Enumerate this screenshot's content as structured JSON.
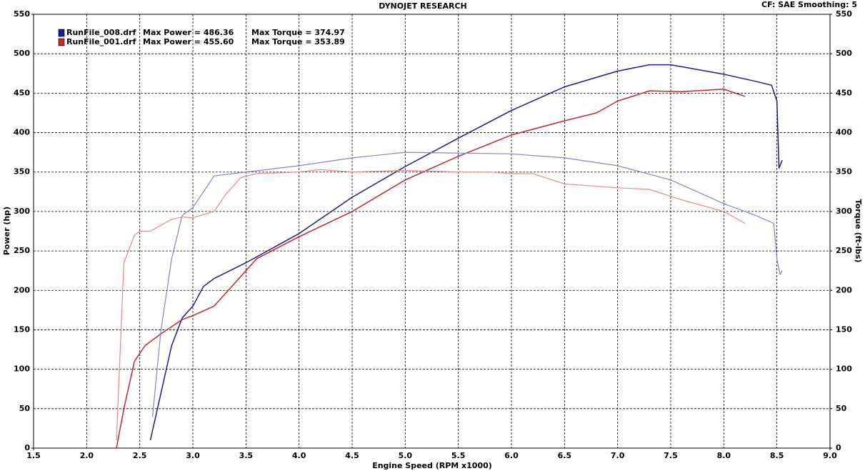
{
  "chart_data": {
    "type": "line",
    "title": "DYNOJET RESEARCH",
    "subtitle": "CF: SAE  Smoothing: 5",
    "x_label": "Engine Speed (RPM x1000)",
    "y_label": "Power (hp)",
    "y2_label": "Torque (ft-lbs)",
    "grid": true,
    "xlim": [
      1.5,
      9.0
    ],
    "xticks": [
      1.5,
      {
        "value": 2,
        "label": "2.0"
      },
      2.5,
      {
        "value": 3,
        "label": "3.0"
      },
      3.5,
      {
        "value": 4,
        "label": "4.0"
      },
      4.5,
      {
        "value": 5,
        "label": "5.0"
      },
      5.5,
      {
        "value": 6,
        "label": "6.0"
      },
      6.5,
      {
        "value": 7,
        "label": "7.0"
      },
      7.5,
      {
        "value": 8,
        "label": "8.0"
      },
      8.5,
      {
        "value": 9,
        "label": "9.0"
      }
    ],
    "ylim": [
      0,
      550
    ],
    "yticks": [
      0,
      50,
      100,
      150,
      200,
      250,
      300,
      350,
      400,
      450,
      500,
      550
    ],
    "y2lim": [
      0,
      550
    ],
    "y2ticks": [
      0,
      50,
      100,
      150,
      200,
      250,
      300,
      350,
      400,
      450,
      500,
      550
    ],
    "legend_annotations": [
      [
        "Max Power = 486.36",
        "Max Torque = 374.97"
      ],
      [
        "Max Power = 455.60",
        "Max Torque = 353.89"
      ]
    ],
    "series": [
      {
        "name": "RunFile_008.drf",
        "color": "#1c1c8a",
        "x": [
          2.6,
          2.7,
          2.8,
          2.9,
          3.0,
          3.1,
          3.2,
          3.5,
          4.0,
          4.5,
          5.0,
          5.5,
          6.0,
          6.5,
          7.0,
          7.3,
          7.5,
          8.0,
          8.3,
          8.45,
          8.5,
          8.52,
          8.55
        ],
        "values": [
          10,
          70,
          130,
          165,
          180,
          205,
          215,
          235,
          272,
          318,
          357,
          393,
          428,
          458,
          478,
          486,
          486,
          474,
          465,
          460,
          440,
          355,
          365
        ]
      },
      {
        "name": "RunFile_001.drf",
        "color": "#c0282a",
        "x": [
          2.28,
          2.35,
          2.45,
          2.55,
          2.7,
          2.9,
          3.0,
          3.2,
          3.4,
          3.6,
          4.0,
          4.5,
          5.0,
          5.5,
          6.0,
          6.5,
          6.8,
          7.0,
          7.3,
          7.6,
          8.0,
          8.2
        ],
        "values": [
          0,
          50,
          110,
          130,
          145,
          163,
          168,
          180,
          210,
          240,
          268,
          300,
          340,
          370,
          397,
          415,
          425,
          440,
          453,
          452,
          455,
          446
        ]
      },
      {
        "axis": "y2",
        "color": "#8585c4",
        "x": [
          2.62,
          2.7,
          2.8,
          2.9,
          3.0,
          3.2,
          3.5,
          4.0,
          4.5,
          5.0,
          5.5,
          6.0,
          6.5,
          7.0,
          7.5,
          8.0,
          8.3,
          8.47,
          8.5,
          8.53,
          8.55
        ],
        "values": [
          40,
          150,
          240,
          295,
          305,
          345,
          350,
          358,
          368,
          375,
          374,
          373,
          368,
          358,
          340,
          310,
          295,
          285,
          240,
          220,
          225
        ]
      },
      {
        "axis": "y2",
        "color": "#e48a8a",
        "x": [
          2.28,
          2.35,
          2.45,
          2.5,
          2.6,
          2.8,
          2.9,
          3.0,
          3.2,
          3.3,
          3.45,
          3.6,
          4.0,
          4.2,
          4.5,
          5.0,
          5.5,
          5.8,
          6.0,
          6.2,
          6.5,
          7.0,
          7.3,
          7.6,
          8.0,
          8.2
        ],
        "values": [
          10,
          235,
          270,
          275,
          275,
          290,
          293,
          292,
          300,
          320,
          343,
          348,
          350,
          353,
          350,
          352,
          350,
          350,
          348,
          348,
          335,
          330,
          328,
          315,
          300,
          285
        ]
      }
    ]
  }
}
